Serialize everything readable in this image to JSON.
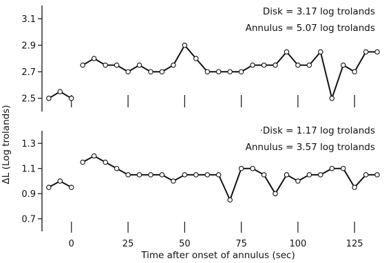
{
  "figure": {
    "ylabel": "ΔL (Log trolands)",
    "xlabel": "Time after onset of annulus (sec)",
    "x_tick_labels": [
      "0",
      "25",
      "50",
      "75",
      "100",
      "125"
    ]
  },
  "chart_data": [
    {
      "type": "line",
      "annotation": [
        "Disk = 3.17 log trolands",
        "Annulus = 5.07 log trolands"
      ],
      "ylim": [
        2.4,
        3.2
      ],
      "xlim": [
        -13,
        138
      ],
      "y_ticks": [
        "3.1",
        "2.9",
        "2.7",
        "2.5"
      ],
      "x_ticks": [
        0,
        25,
        50,
        75,
        100,
        125
      ],
      "xlabel": "",
      "ylabel": "ΔL (Log trolands)",
      "series": [
        {
          "x": [
            -10,
            -5,
            0
          ],
          "y": [
            2.5,
            2.55,
            2.5
          ]
        },
        {
          "x": [
            5,
            10,
            15,
            20,
            25,
            30,
            35,
            40,
            45,
            50,
            55,
            60,
            65,
            70,
            75,
            80,
            85,
            90,
            95,
            100,
            105,
            110,
            115,
            120,
            125,
            130,
            135
          ],
          "y": [
            2.75,
            2.8,
            2.75,
            2.75,
            2.7,
            2.75,
            2.7,
            2.7,
            2.75,
            2.9,
            2.8,
            2.7,
            2.7,
            2.7,
            2.7,
            2.75,
            2.75,
            2.75,
            2.85,
            2.75,
            2.75,
            2.85,
            2.5,
            2.75,
            2.7,
            2.85,
            2.85
          ]
        }
      ]
    },
    {
      "type": "line",
      "annotation": [
        "·Disk = 1.17 log trolands",
        "Annulus = 3.57 log trolands"
      ],
      "ylim": [
        0.6,
        1.4
      ],
      "xlim": [
        -13,
        138
      ],
      "y_ticks": [
        "1.3",
        "1.1",
        "0.9",
        "0.7"
      ],
      "x_ticks": [
        0,
        25,
        50,
        75,
        100,
        125
      ],
      "xlabel": "Time after onset of annulus (sec)",
      "ylabel": "ΔL (Log trolands)",
      "series": [
        {
          "x": [
            -10,
            -5,
            0
          ],
          "y": [
            0.95,
            1.0,
            0.95
          ]
        },
        {
          "x": [
            5,
            10,
            15,
            20,
            25,
            30,
            35,
            40,
            45,
            50,
            55,
            60,
            65,
            70,
            75,
            80,
            85,
            90,
            95,
            100,
            105,
            110,
            115,
            120,
            125,
            130,
            135
          ],
          "y": [
            1.15,
            1.2,
            1.15,
            1.1,
            1.05,
            1.05,
            1.05,
            1.05,
            1.0,
            1.05,
            1.05,
            1.05,
            1.05,
            0.85,
            1.1,
            1.1,
            1.05,
            0.9,
            1.05,
            1.0,
            1.05,
            1.05,
            1.1,
            1.1,
            0.95,
            1.05,
            1.05
          ]
        }
      ]
    }
  ]
}
